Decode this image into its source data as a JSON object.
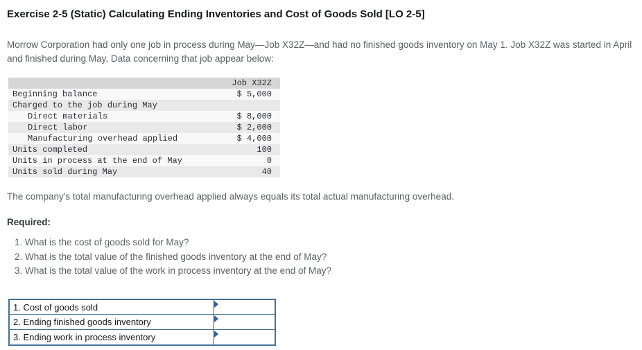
{
  "title": "Exercise 2-5 (Static) Calculating Ending Inventories and Cost of Goods Sold [LO 2-5]",
  "intro": "Morrow Corporation had only one job in process during May—Job X32Z—and had no finished goods inventory on May 1. Job X32Z was started in April and finished during May, Data concerning that job appear below:",
  "data_table": {
    "header": "Job X32Z",
    "rows": [
      {
        "label": "Beginning balance",
        "value": "$ 5,000"
      },
      {
        "label": "Charged to the job during May",
        "value": ""
      },
      {
        "label": "Direct materials",
        "value": "$ 8,000"
      },
      {
        "label": "Direct labor",
        "value": "$ 2,000"
      },
      {
        "label": "Manufacturing overhead applied",
        "value": "$ 4,000"
      },
      {
        "label": "Units completed",
        "value": "100"
      },
      {
        "label": "Units in process at the end of May",
        "value": "0"
      },
      {
        "label": "Units sold during May",
        "value": "40"
      }
    ]
  },
  "note": "The company's total manufacturing overhead applied always equals its total actual manufacturing overhead.",
  "required_label": "Required:",
  "questions": [
    "What is the cost of goods sold for May?",
    "What is the total value of the finished goods inventory at the end of May?",
    "What is the total value of the work in process inventory at the end of May?"
  ],
  "answer_table": {
    "rows": [
      {
        "label": "1. Cost of goods sold",
        "value": ""
      },
      {
        "label": "2. Ending finished goods inventory",
        "value": ""
      },
      {
        "label": "3. Ending work in process inventory",
        "value": ""
      }
    ]
  },
  "colors": {
    "answer_border": "#44719b",
    "marker": "#2d5d90",
    "table_header_bg": "#d6d6d6",
    "table_stripe_bg": "#e9e9e9"
  }
}
